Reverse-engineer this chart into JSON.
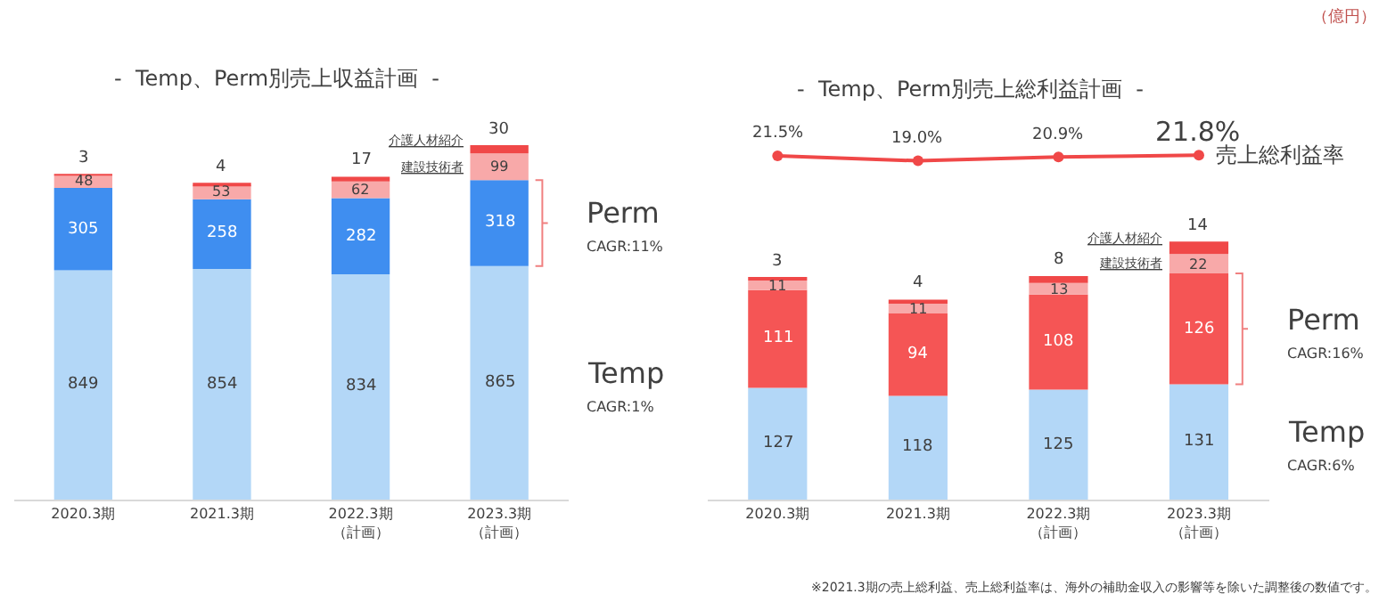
{
  "chart_data": [
    {
      "type": "bar",
      "stacked": true,
      "title": "-  Temp、Perm別売上収益計画  -",
      "categories": [
        "2020.3期",
        "2021.3期",
        "2022.3期（計画）",
        "2023.3期（計画）"
      ],
      "data_labels": true,
      "series": [
        {
          "name": "Temp",
          "color": "#b3d7f7",
          "values": [
            849,
            854,
            834,
            865
          ]
        },
        {
          "name": "Perm",
          "color": "#3f8ef0",
          "values": [
            305,
            258,
            282,
            318
          ]
        },
        {
          "name": "建設技術者",
          "color": "#f8a9a9",
          "values": [
            48,
            53,
            62,
            99
          ]
        },
        {
          "name": "介護人材紹介",
          "color": "#f04848",
          "values": [
            3,
            4,
            17,
            30
          ]
        }
      ],
      "annotations": [
        "CAGR:11%",
        "CAGR:1%"
      ]
    },
    {
      "type": "line",
      "title": "-  Temp、Perm別売上総利益計画  -",
      "categories": [
        null,
        null,
        null,
        null
      ],
      "marker": "circle",
      "series": [
        {
          "name": "売上総利益率",
          "color": "#f04848",
          "values": [
            21.5,
            19.0,
            20.9,
            21.8
          ],
          "value_labels": [
            "21.5%",
            "19.0%",
            "20.9%",
            "21.8%"
          ]
        }
      ]
    },
    {
      "type": "bar",
      "stacked": true,
      "categories": [
        "2020.3期",
        "2021.3期",
        "2022.3期（計画）",
        "2023.3期（計画）"
      ],
      "data_labels": true,
      "series": [
        {
          "name": "Temp",
          "color": "#b3d7f7",
          "values": [
            127,
            118,
            125,
            131
          ]
        },
        {
          "name": "Perm",
          "color": "#f55555",
          "values": [
            111,
            94,
            108,
            126
          ]
        },
        {
          "name": "建設技術者",
          "color": "#f8a9a9",
          "values": [
            11,
            11,
            13,
            22
          ]
        },
        {
          "name": "介護人材紹介",
          "color": "#f04848",
          "values": [
            3,
            4,
            8,
            14
          ]
        }
      ],
      "annotations": [
        "CAGR:16%",
        "CAGR:6%",
        "（億円）",
        "※2021.3期の売上総利益、売上総利益率は、海外の補助金収入の影響等を除いた調整後の数値です。"
      ]
    }
  ]
}
